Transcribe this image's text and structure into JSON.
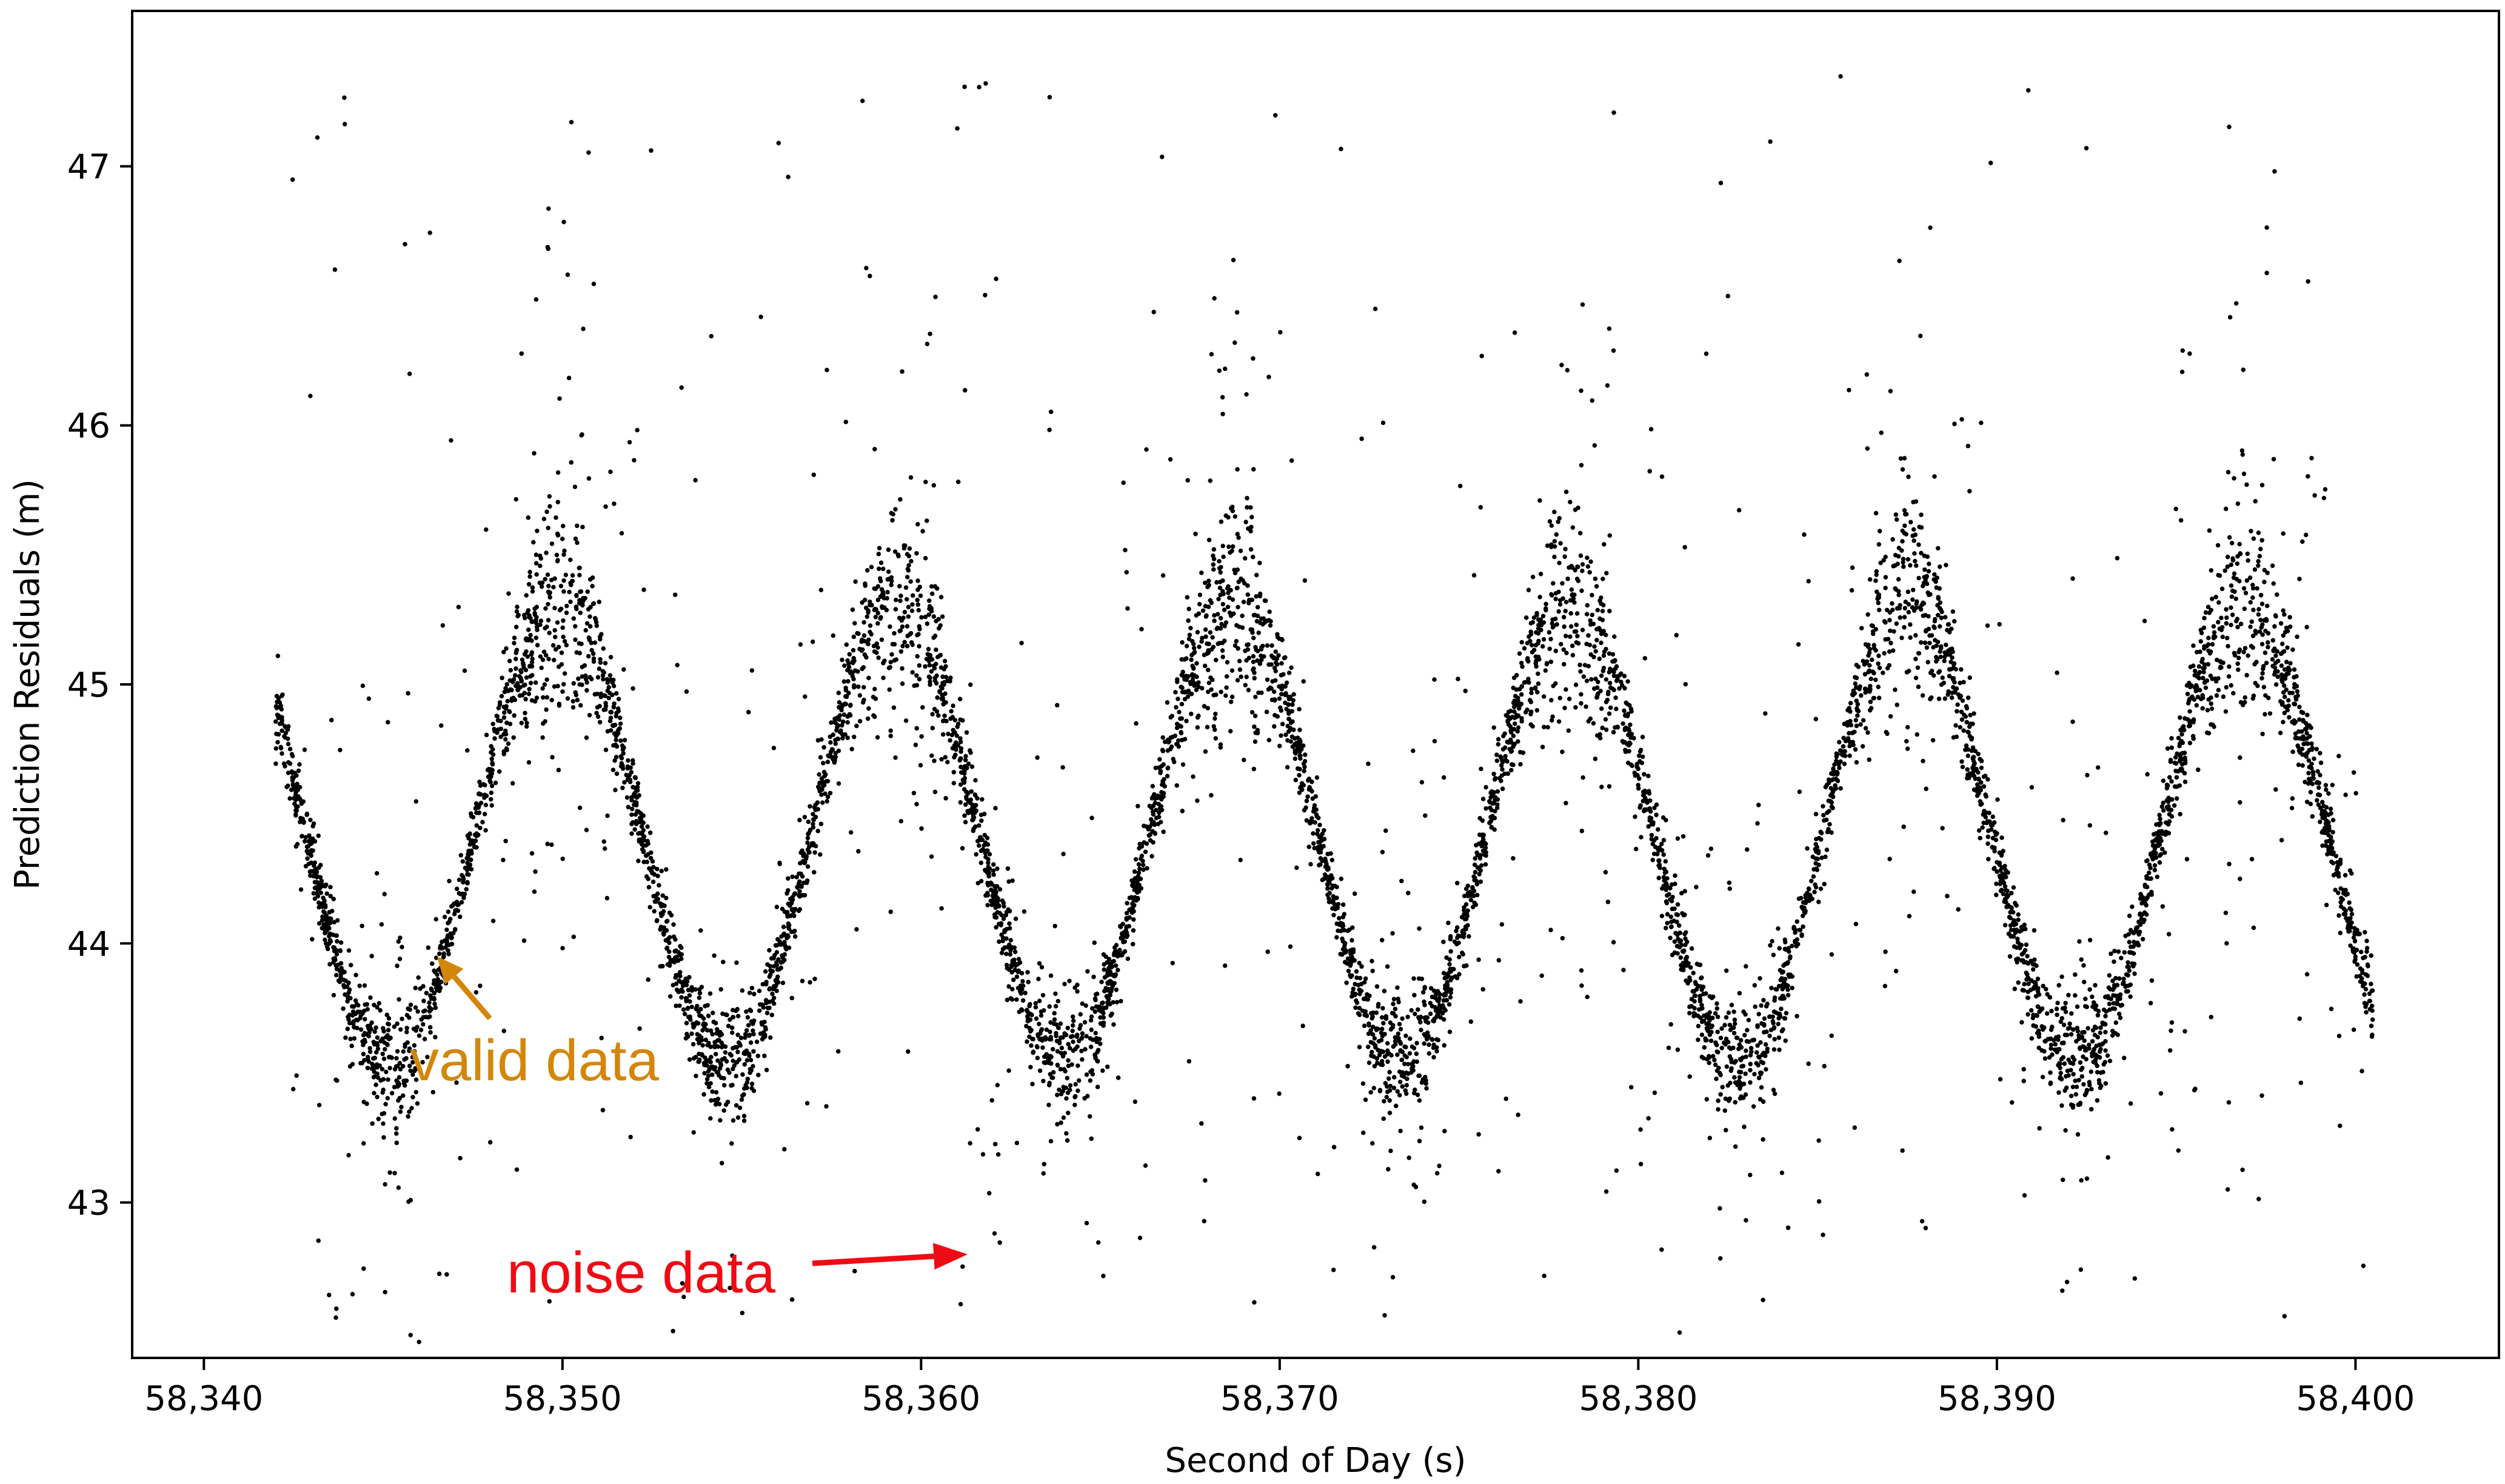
{
  "colors": {
    "points": "#000000",
    "valid_annotation": "#D4860B",
    "noise_annotation": "#F00A14",
    "frame": "#000000"
  },
  "chart_data": {
    "type": "scatter",
    "xlabel": "Second of Day (s)",
    "ylabel": "Prediction Residuals (m)",
    "xlim": [
      58338,
      58404
    ],
    "ylim": [
      42.4,
      47.6
    ],
    "x_ticks": [
      58340,
      58350,
      58360,
      58370,
      58380,
      58390,
      58400
    ],
    "x_tick_labels": [
      "58,340",
      "58,350",
      "58,360",
      "58,370",
      "58,380",
      "58,390",
      "58,400"
    ],
    "y_ticks": [
      43,
      44,
      45,
      46,
      47
    ],
    "y_tick_labels": [
      "43",
      "44",
      "45",
      "46",
      "47"
    ],
    "grid": false,
    "legend": "none",
    "series": [
      {
        "trend": "sinusoid",
        "x_range": [
          58342,
          58400.5
        ],
        "center": 44.42,
        "amplitude": 0.88,
        "period": 9.4,
        "first_minimum_x": 58345.2,
        "minima_x": [
          58345.2,
          58354.7,
          58364.1,
          58373.4,
          58382.8,
          58392.3
        ],
        "maxima_x": [
          58350.0,
          58359.3,
          58368.8,
          58378.1,
          58387.5,
          58397.0
        ],
        "min_y": 43.55,
        "max_y": 45.3,
        "noise_outliers_y_range": [
          42.5,
          47.35
        ]
      }
    ],
    "annotations": [
      {
        "text": "valid data",
        "color": "valid",
        "target": [
          58346.5,
          43.95
        ]
      },
      {
        "text": "noise data",
        "color": "noise",
        "target": [
          58361.3,
          42.8
        ]
      }
    ]
  }
}
